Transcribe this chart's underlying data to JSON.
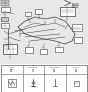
{
  "bg_color": "#f0f0f0",
  "line_color": "#404040",
  "text_color": "#303030",
  "table_line_color": "#606060",
  "diagram_bg": "#e8e8e8",
  "white": "#ffffff",
  "light_gray": "#c8c8c8",
  "dark": "#202020"
}
